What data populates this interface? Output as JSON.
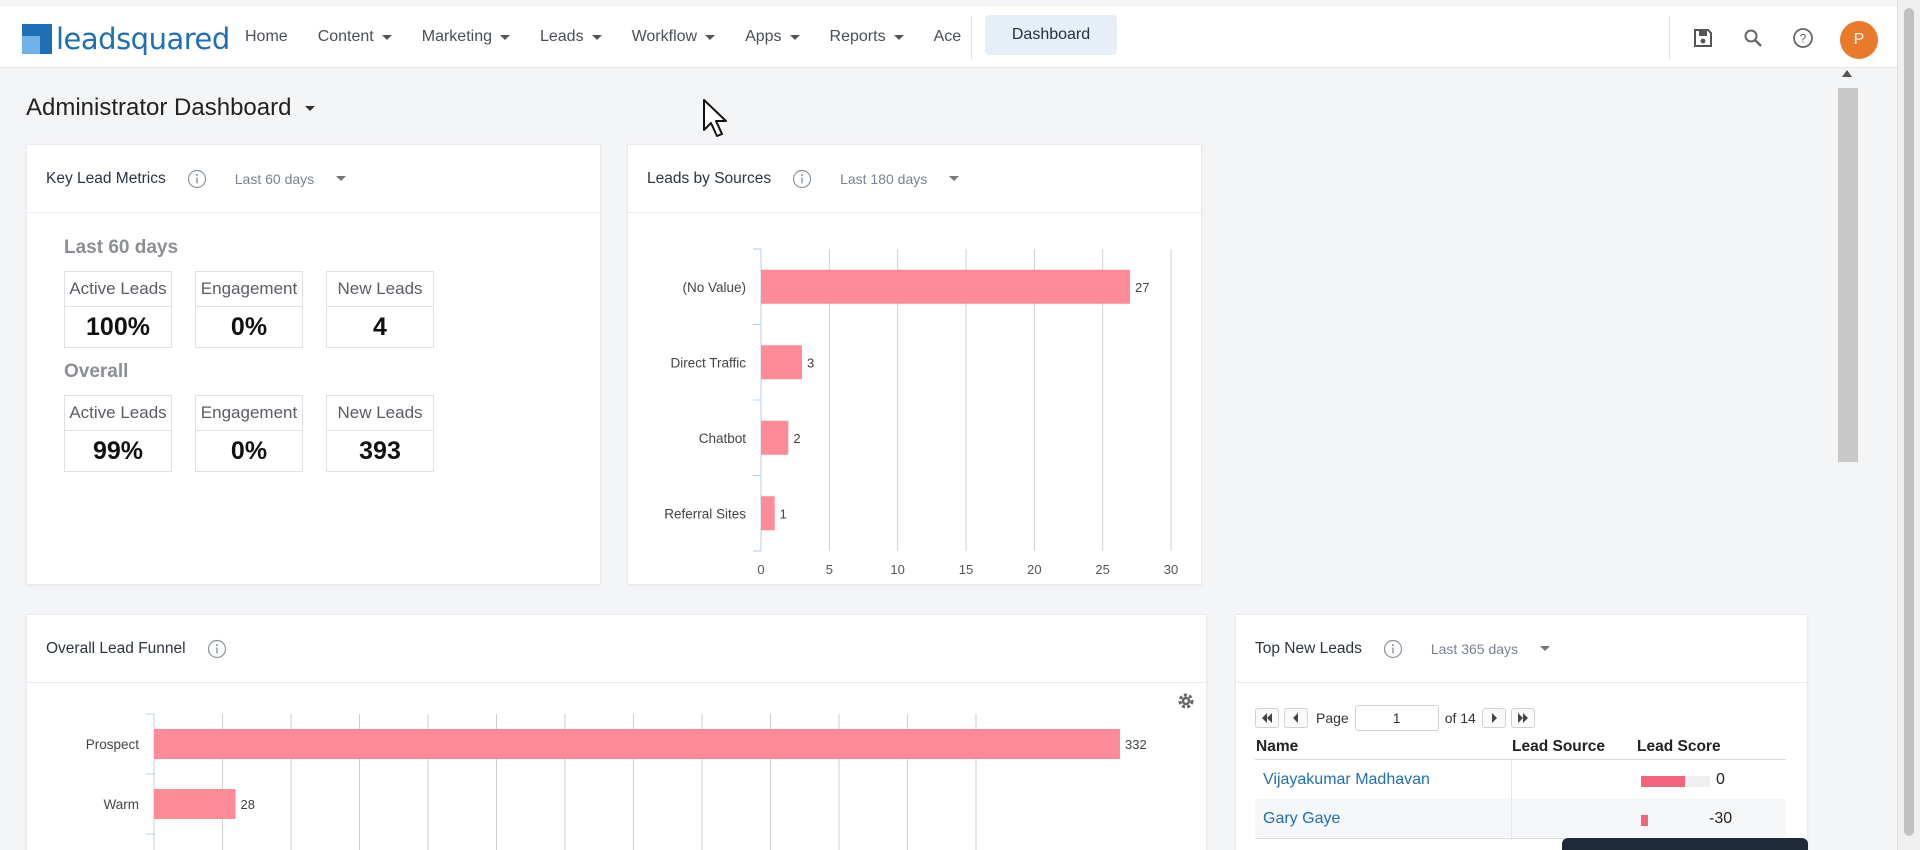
{
  "brand": {
    "name": "leadsquared"
  },
  "nav": {
    "items": [
      {
        "label": "Home",
        "has_menu": false
      },
      {
        "label": "Content",
        "has_menu": true
      },
      {
        "label": "Marketing",
        "has_menu": true
      },
      {
        "label": "Leads",
        "has_menu": true
      },
      {
        "label": "Workflow",
        "has_menu": true
      },
      {
        "label": "Apps",
        "has_menu": true
      },
      {
        "label": "Reports",
        "has_menu": true
      },
      {
        "label": "Ace",
        "has_menu": false
      }
    ],
    "active": "Dashboard",
    "user_initial": "P"
  },
  "page": {
    "title": "Administrator Dashboard"
  },
  "key_metrics": {
    "title": "Key Lead Metrics",
    "range": "Last 60 days",
    "recent": {
      "label": "Last 60 days",
      "active_leads_label": "Active Leads",
      "active_leads": "100%",
      "engagement_label": "Engagement",
      "engagement": "0%",
      "new_leads_label": "New Leads",
      "new_leads": "4"
    },
    "overall": {
      "label": "Overall",
      "active_leads_label": "Active Leads",
      "active_leads": "99%",
      "engagement_label": "Engagement",
      "engagement": "0%",
      "new_leads_label": "New Leads",
      "new_leads": "393"
    }
  },
  "leads_by_sources": {
    "title": "Leads by Sources",
    "range": "Last 180 days"
  },
  "funnel": {
    "title": "Overall Lead Funnel"
  },
  "top_new_leads": {
    "title": "Top New Leads",
    "range": "Last 365 days",
    "page_label": "Page",
    "page": "1",
    "of_label": "of 14",
    "columns": {
      "name": "Name",
      "source": "Lead Source",
      "score": "Lead Score"
    },
    "rows": [
      {
        "name": "Vijayakumar Madhavan",
        "source": "",
        "score": "0",
        "score_value": 0
      },
      {
        "name": "Gary Gaye",
        "source": "",
        "score": "-30",
        "score_value": -30
      }
    ]
  },
  "colors": {
    "accent": "#1f6fb5",
    "bar": "#ff8a98",
    "avatar": "#e97a2b"
  },
  "chart_data": [
    {
      "type": "bar",
      "orientation": "horizontal",
      "title": "Leads by Sources",
      "categories": [
        "(No Value)",
        "Direct Traffic",
        "Chatbot",
        "Referral Sites"
      ],
      "values": [
        27,
        3,
        2,
        1
      ],
      "xlim": [
        0,
        30
      ],
      "xticks": [
        0,
        5,
        10,
        15,
        20,
        25,
        30
      ],
      "grid": true
    },
    {
      "type": "bar",
      "orientation": "horizontal",
      "title": "Overall Lead Funnel",
      "categories": [
        "Prospect",
        "Warm"
      ],
      "values": [
        332,
        28
      ],
      "grid": true
    }
  ]
}
